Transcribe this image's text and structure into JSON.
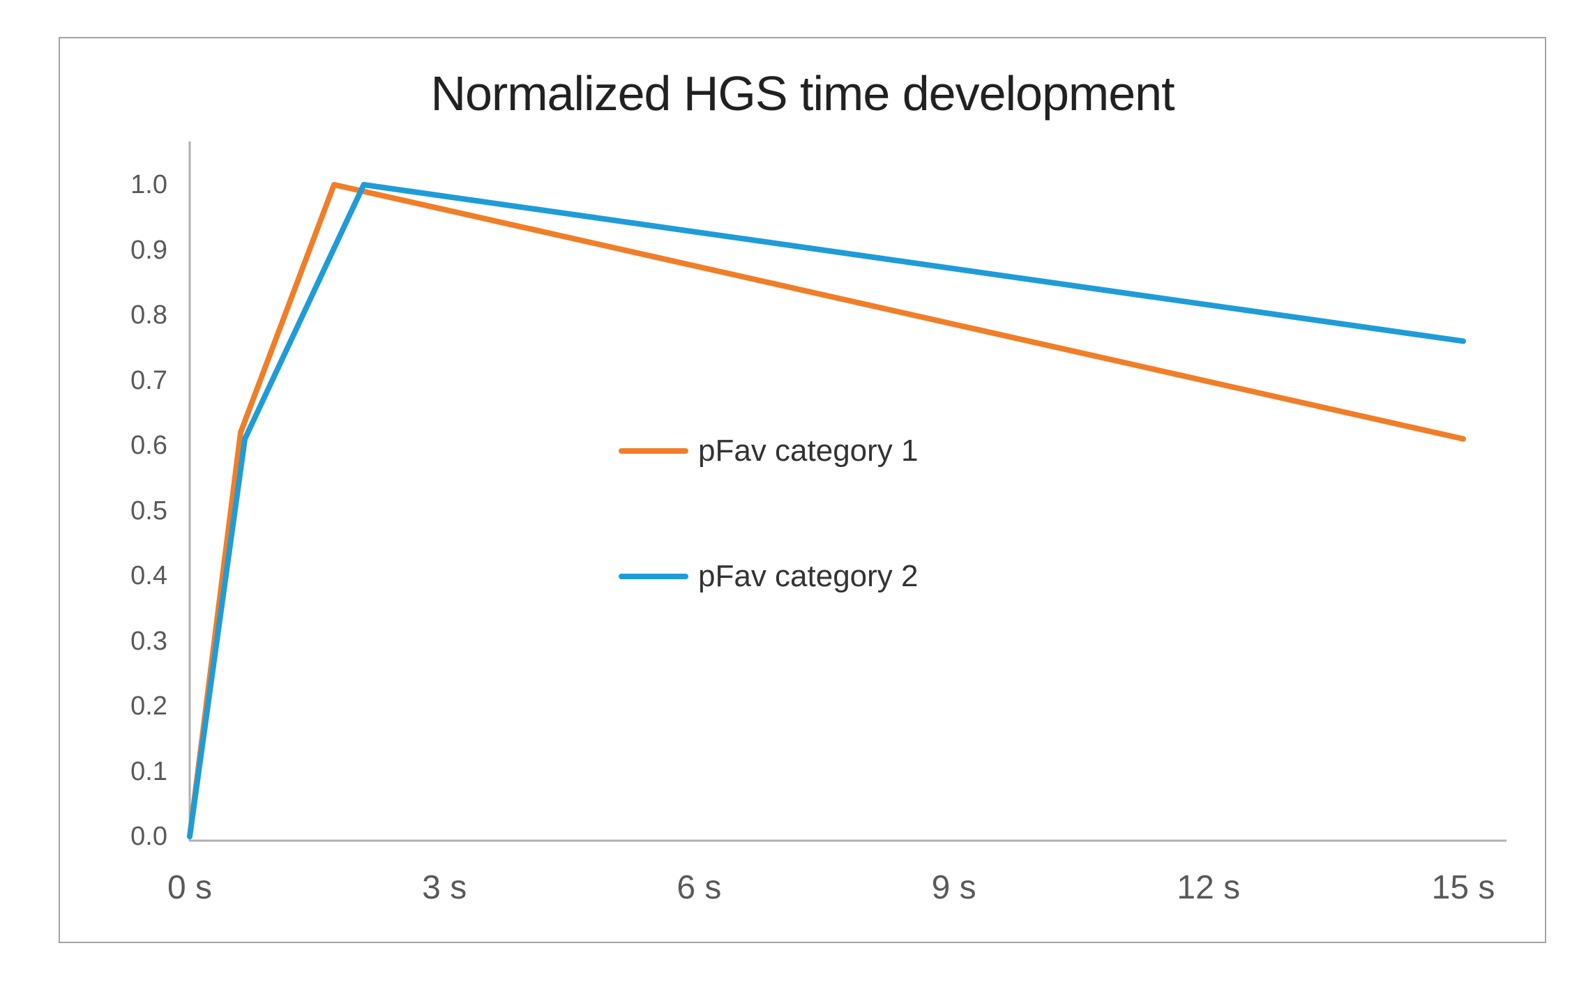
{
  "chart_data": {
    "type": "line",
    "title": "Normalized HGS time development",
    "xlabel": "",
    "ylabel": "",
    "x_unit": "s",
    "xlim": [
      0,
      15
    ],
    "ylim": [
      0.0,
      1.0
    ],
    "grid": false,
    "legend_position": "inside-center",
    "axis_color": "#afafaf",
    "tick_label_color": "#595959",
    "title_color": "#212121",
    "x_ticks": [
      {
        "value": 0,
        "label": "0 s"
      },
      {
        "value": 3,
        "label": "3 s"
      },
      {
        "value": 6,
        "label": "6 s"
      },
      {
        "value": 9,
        "label": "9 s"
      },
      {
        "value": 12,
        "label": "12 s"
      },
      {
        "value": 15,
        "label": "15 s"
      }
    ],
    "y_ticks": [
      {
        "value": 0.0,
        "label": "0.0"
      },
      {
        "value": 0.1,
        "label": "0.1"
      },
      {
        "value": 0.2,
        "label": "0.2"
      },
      {
        "value": 0.3,
        "label": "0.3"
      },
      {
        "value": 0.4,
        "label": "0.4"
      },
      {
        "value": 0.5,
        "label": "0.5"
      },
      {
        "value": 0.6,
        "label": "0.6"
      },
      {
        "value": 0.7,
        "label": "0.7"
      },
      {
        "value": 0.8,
        "label": "0.8"
      },
      {
        "value": 0.9,
        "label": "0.9"
      },
      {
        "value": 1.0,
        "label": "1.0"
      }
    ],
    "series": [
      {
        "name": "pFav category 1",
        "color": "#F07E28",
        "points": [
          [
            0,
            0.0
          ],
          [
            0.6,
            0.62
          ],
          [
            1.7,
            1.0
          ],
          [
            15,
            0.61
          ]
        ]
      },
      {
        "name": "pFav category 2",
        "color": "#1F9CD7",
        "points": [
          [
            0,
            0.0
          ],
          [
            0.65,
            0.61
          ],
          [
            2.05,
            1.0
          ],
          [
            15,
            0.76
          ]
        ]
      }
    ]
  }
}
